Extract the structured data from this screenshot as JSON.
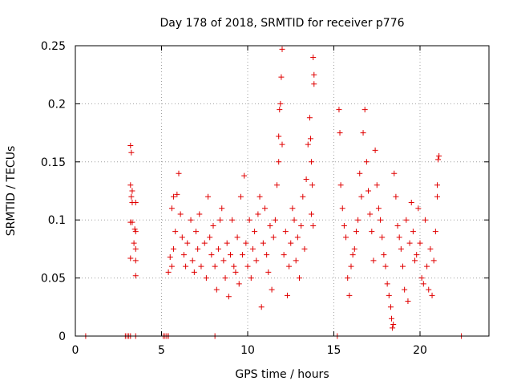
{
  "chart_data": {
    "type": "scatter",
    "title": "Day 178 of 2018, SRMTID for receiver p776",
    "xlabel": "GPS time / hours",
    "ylabel": "SRMTID / TECUs",
    "xlim": [
      0,
      24
    ],
    "ylim": [
      0,
      0.25
    ],
    "x_ticks": [
      0,
      5,
      10,
      15,
      20
    ],
    "x_tick_labels": [
      "0",
      "5",
      "10",
      "15",
      "20"
    ],
    "y_ticks": [
      0,
      0.05,
      0.1,
      0.15,
      0.2,
      0.25
    ],
    "y_tick_labels": [
      "0",
      "0.05",
      "0.1",
      "0.15",
      "0.2",
      "0.25"
    ],
    "grid": true,
    "marker": "+",
    "color": "#e00000",
    "series": [
      {
        "name": "SRMTID",
        "points": [
          [
            0.6,
            0
          ],
          [
            2.9,
            0
          ],
          [
            3.0,
            0
          ],
          [
            3.1,
            0
          ],
          [
            3.2,
            0
          ],
          [
            3.5,
            0
          ],
          [
            5.1,
            0
          ],
          [
            5.2,
            0
          ],
          [
            5.3,
            0
          ],
          [
            5.4,
            0
          ],
          [
            8.1,
            0
          ],
          [
            15.2,
            0
          ],
          [
            22.4,
            0
          ],
          [
            3.2,
            0.164
          ],
          [
            3.25,
            0.158
          ],
          [
            3.2,
            0.13
          ],
          [
            3.3,
            0.125
          ],
          [
            3.25,
            0.12
          ],
          [
            3.3,
            0.115
          ],
          [
            3.2,
            0.098
          ],
          [
            3.3,
            0.098
          ],
          [
            3.5,
            0.115
          ],
          [
            3.45,
            0.092
          ],
          [
            3.5,
            0.09
          ],
          [
            3.4,
            0.08
          ],
          [
            3.5,
            0.075
          ],
          [
            3.2,
            0.067
          ],
          [
            3.5,
            0.065
          ],
          [
            3.5,
            0.052
          ],
          [
            5.4,
            0.055
          ],
          [
            5.5,
            0.068
          ],
          [
            5.6,
            0.06
          ],
          [
            5.7,
            0.075
          ],
          [
            5.8,
            0.09
          ],
          [
            5.6,
            0.11
          ],
          [
            5.7,
            0.12
          ],
          [
            5.9,
            0.122
          ],
          [
            6.0,
            0.14
          ],
          [
            6.1,
            0.105
          ],
          [
            6.2,
            0.085
          ],
          [
            6.3,
            0.07
          ],
          [
            6.4,
            0.06
          ],
          [
            6.5,
            0.08
          ],
          [
            6.7,
            0.1
          ],
          [
            6.8,
            0.065
          ],
          [
            6.9,
            0.055
          ],
          [
            7.0,
            0.09
          ],
          [
            7.1,
            0.075
          ],
          [
            7.2,
            0.105
          ],
          [
            7.3,
            0.06
          ],
          [
            7.5,
            0.08
          ],
          [
            7.6,
            0.05
          ],
          [
            7.7,
            0.12
          ],
          [
            7.8,
            0.085
          ],
          [
            7.9,
            0.07
          ],
          [
            8.0,
            0.095
          ],
          [
            8.1,
            0.06
          ],
          [
            8.2,
            0.04
          ],
          [
            8.3,
            0.075
          ],
          [
            8.4,
            0.1
          ],
          [
            8.5,
            0.11
          ],
          [
            8.6,
            0.065
          ],
          [
            8.7,
            0.05
          ],
          [
            8.8,
            0.08
          ],
          [
            8.9,
            0.034
          ],
          [
            9.0,
            0.07
          ],
          [
            9.1,
            0.1
          ],
          [
            9.2,
            0.06
          ],
          [
            9.3,
            0.055
          ],
          [
            9.4,
            0.085
          ],
          [
            9.5,
            0.045
          ],
          [
            9.6,
            0.12
          ],
          [
            9.7,
            0.07
          ],
          [
            9.8,
            0.138
          ],
          [
            9.9,
            0.08
          ],
          [
            10.0,
            0.06
          ],
          [
            10.1,
            0.1
          ],
          [
            10.2,
            0.05
          ],
          [
            10.3,
            0.075
          ],
          [
            10.4,
            0.09
          ],
          [
            10.5,
            0.065
          ],
          [
            10.6,
            0.105
          ],
          [
            10.7,
            0.12
          ],
          [
            10.8,
            0.025
          ],
          [
            10.9,
            0.08
          ],
          [
            11.0,
            0.11
          ],
          [
            11.1,
            0.07
          ],
          [
            11.2,
            0.055
          ],
          [
            11.3,
            0.095
          ],
          [
            11.4,
            0.04
          ],
          [
            11.5,
            0.085
          ],
          [
            11.6,
            0.1
          ],
          [
            11.7,
            0.13
          ],
          [
            11.8,
            0.15
          ],
          [
            11.85,
            0.195
          ],
          [
            11.9,
            0.2
          ],
          [
            11.95,
            0.223
          ],
          [
            12.0,
            0.247
          ],
          [
            11.8,
            0.172
          ],
          [
            12.0,
            0.165
          ],
          [
            12.1,
            0.07
          ],
          [
            12.2,
            0.09
          ],
          [
            12.3,
            0.035
          ],
          [
            12.4,
            0.06
          ],
          [
            12.5,
            0.08
          ],
          [
            12.6,
            0.11
          ],
          [
            12.7,
            0.1
          ],
          [
            12.8,
            0.065
          ],
          [
            12.9,
            0.085
          ],
          [
            13.0,
            0.05
          ],
          [
            13.1,
            0.095
          ],
          [
            13.2,
            0.12
          ],
          [
            13.3,
            0.075
          ],
          [
            13.4,
            0.135
          ],
          [
            13.5,
            0.165
          ],
          [
            13.6,
            0.188
          ],
          [
            13.65,
            0.17
          ],
          [
            13.7,
            0.15
          ],
          [
            13.75,
            0.13
          ],
          [
            13.8,
            0.24
          ],
          [
            13.85,
            0.225
          ],
          [
            13.85,
            0.217
          ],
          [
            13.7,
            0.105
          ],
          [
            13.8,
            0.095
          ],
          [
            15.3,
            0.195
          ],
          [
            15.35,
            0.175
          ],
          [
            15.4,
            0.13
          ],
          [
            15.5,
            0.11
          ],
          [
            15.6,
            0.095
          ],
          [
            15.7,
            0.085
          ],
          [
            15.8,
            0.05
          ],
          [
            15.9,
            0.035
          ],
          [
            16.0,
            0.06
          ],
          [
            16.1,
            0.07
          ],
          [
            16.2,
            0.075
          ],
          [
            16.3,
            0.09
          ],
          [
            16.4,
            0.1
          ],
          [
            16.5,
            0.14
          ],
          [
            16.6,
            0.12
          ],
          [
            16.7,
            0.175
          ],
          [
            16.8,
            0.195
          ],
          [
            16.9,
            0.15
          ],
          [
            17.0,
            0.125
          ],
          [
            17.1,
            0.105
          ],
          [
            17.2,
            0.09
          ],
          [
            17.3,
            0.065
          ],
          [
            17.4,
            0.16
          ],
          [
            17.5,
            0.13
          ],
          [
            17.6,
            0.11
          ],
          [
            17.7,
            0.1
          ],
          [
            17.8,
            0.085
          ],
          [
            17.9,
            0.07
          ],
          [
            18.0,
            0.06
          ],
          [
            18.1,
            0.045
          ],
          [
            18.2,
            0.035
          ],
          [
            18.3,
            0.025
          ],
          [
            18.35,
            0.015
          ],
          [
            18.4,
            0.007
          ],
          [
            18.45,
            0.01
          ],
          [
            18.5,
            0.14
          ],
          [
            18.6,
            0.12
          ],
          [
            18.7,
            0.095
          ],
          [
            18.8,
            0.085
          ],
          [
            18.9,
            0.075
          ],
          [
            19.0,
            0.06
          ],
          [
            19.1,
            0.04
          ],
          [
            19.2,
            0.1
          ],
          [
            19.3,
            0.03
          ],
          [
            19.4,
            0.08
          ],
          [
            19.5,
            0.115
          ],
          [
            19.6,
            0.09
          ],
          [
            19.7,
            0.065
          ],
          [
            19.8,
            0.07
          ],
          [
            19.9,
            0.11
          ],
          [
            20.0,
            0.08
          ],
          [
            20.1,
            0.05
          ],
          [
            20.2,
            0.045
          ],
          [
            20.3,
            0.1
          ],
          [
            20.4,
            0.06
          ],
          [
            20.5,
            0.04
          ],
          [
            20.6,
            0.075
          ],
          [
            20.7,
            0.035
          ],
          [
            20.8,
            0.065
          ],
          [
            20.9,
            0.09
          ],
          [
            21.0,
            0.13
          ],
          [
            21.05,
            0.152
          ],
          [
            21.1,
            0.155
          ],
          [
            21.0,
            0.12
          ]
        ]
      }
    ]
  }
}
